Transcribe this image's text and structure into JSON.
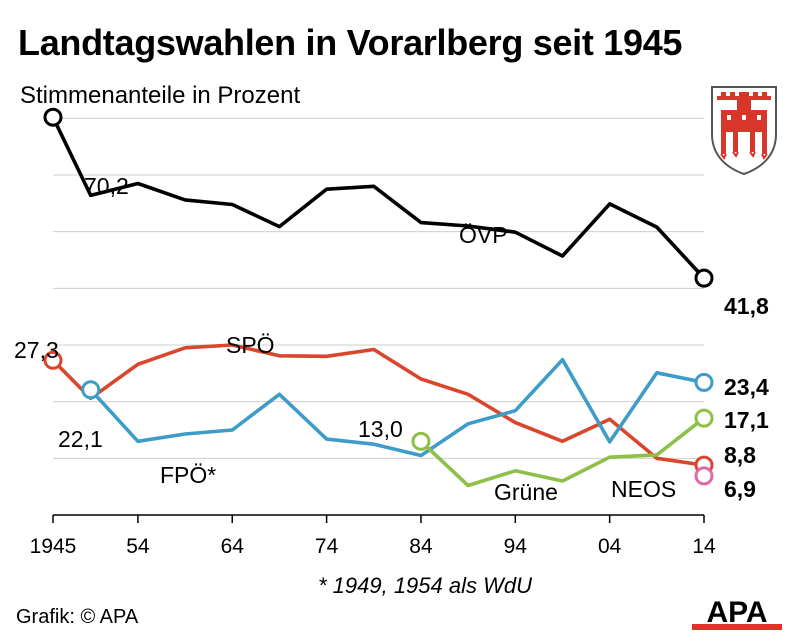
{
  "title": "Landtagswahlen in Vorarlberg seit 1945",
  "subtitle": "Stimmenanteile in Prozent",
  "footnote": "* 1949, 1954 als WdU",
  "credit": "Grafik: © APA",
  "logo_text": "APA",
  "colors": {
    "OVP": "#000000",
    "SPO": "#d9462b",
    "FPO": "#3d9cc8",
    "Grune": "#8dc048",
    "NEOS": "#e06aa8",
    "grid": "#cfcfcf"
  },
  "chart_data": {
    "type": "line",
    "title": "Landtagswahlen in Vorarlberg seit 1945",
    "subtitle": "Stimmenanteile in Prozent",
    "x_tick_labels": [
      "1945",
      "54",
      "64",
      "74",
      "84",
      "94",
      "04",
      "14"
    ],
    "x_ticks": [
      1945,
      1954,
      1964,
      1974,
      1984,
      1994,
      2004,
      2014
    ],
    "xlim": [
      1945,
      2014
    ],
    "ylim": [
      0,
      75
    ],
    "grid": true,
    "series": [
      {
        "name": "ÖVP",
        "color": "#000000",
        "x": [
          1945,
          1949,
          1954,
          1959,
          1964,
          1969,
          1974,
          1979,
          1984,
          1989,
          1994,
          1999,
          2004,
          2009,
          2014
        ],
        "y": [
          70.2,
          56.4,
          58.5,
          55.6,
          54.8,
          50.9,
          57.5,
          58.0,
          51.6,
          51.0,
          49.9,
          45.7,
          54.9,
          50.8,
          41.8
        ],
        "start_label": "70,2",
        "end_label": "41,8",
        "series_label": "ÖVP"
      },
      {
        "name": "SPÖ",
        "color": "#d9462b",
        "x": [
          1945,
          1949,
          1954,
          1959,
          1964,
          1969,
          1974,
          1979,
          1984,
          1989,
          1994,
          1999,
          2004,
          2009,
          2014
        ],
        "y": [
          27.3,
          20.6,
          26.6,
          29.5,
          30.0,
          28.1,
          28.0,
          29.2,
          24.0,
          21.3,
          16.3,
          13.0,
          16.9,
          10.0,
          8.8
        ],
        "start_label": "27,3",
        "end_label": "8,8",
        "series_label": "SPÖ"
      },
      {
        "name": "FPÖ*",
        "color": "#3d9cc8",
        "x": [
          1949,
          1954,
          1959,
          1964,
          1969,
          1974,
          1979,
          1984,
          1989,
          1994,
          1999,
          2004,
          2009,
          2014
        ],
        "y": [
          22.1,
          13.0,
          14.3,
          15.0,
          21.3,
          13.4,
          12.5,
          10.5,
          16.1,
          18.4,
          27.4,
          12.9,
          25.1,
          23.4
        ],
        "start_label": "22,1",
        "end_label": "23,4",
        "series_label": "FPÖ*"
      },
      {
        "name": "Grüne",
        "color": "#8dc048",
        "x": [
          1984,
          1989,
          1994,
          1999,
          2004,
          2009,
          2014
        ],
        "y": [
          13.0,
          5.2,
          7.8,
          6.0,
          10.2,
          10.6,
          17.1
        ],
        "start_label": "13,0",
        "end_label": "17,1",
        "series_label": "Grüne"
      },
      {
        "name": "NEOS",
        "color": "#e06aa8",
        "x": [
          2014
        ],
        "y": [
          6.9
        ],
        "end_label": "6,9",
        "series_label": "NEOS"
      }
    ]
  }
}
